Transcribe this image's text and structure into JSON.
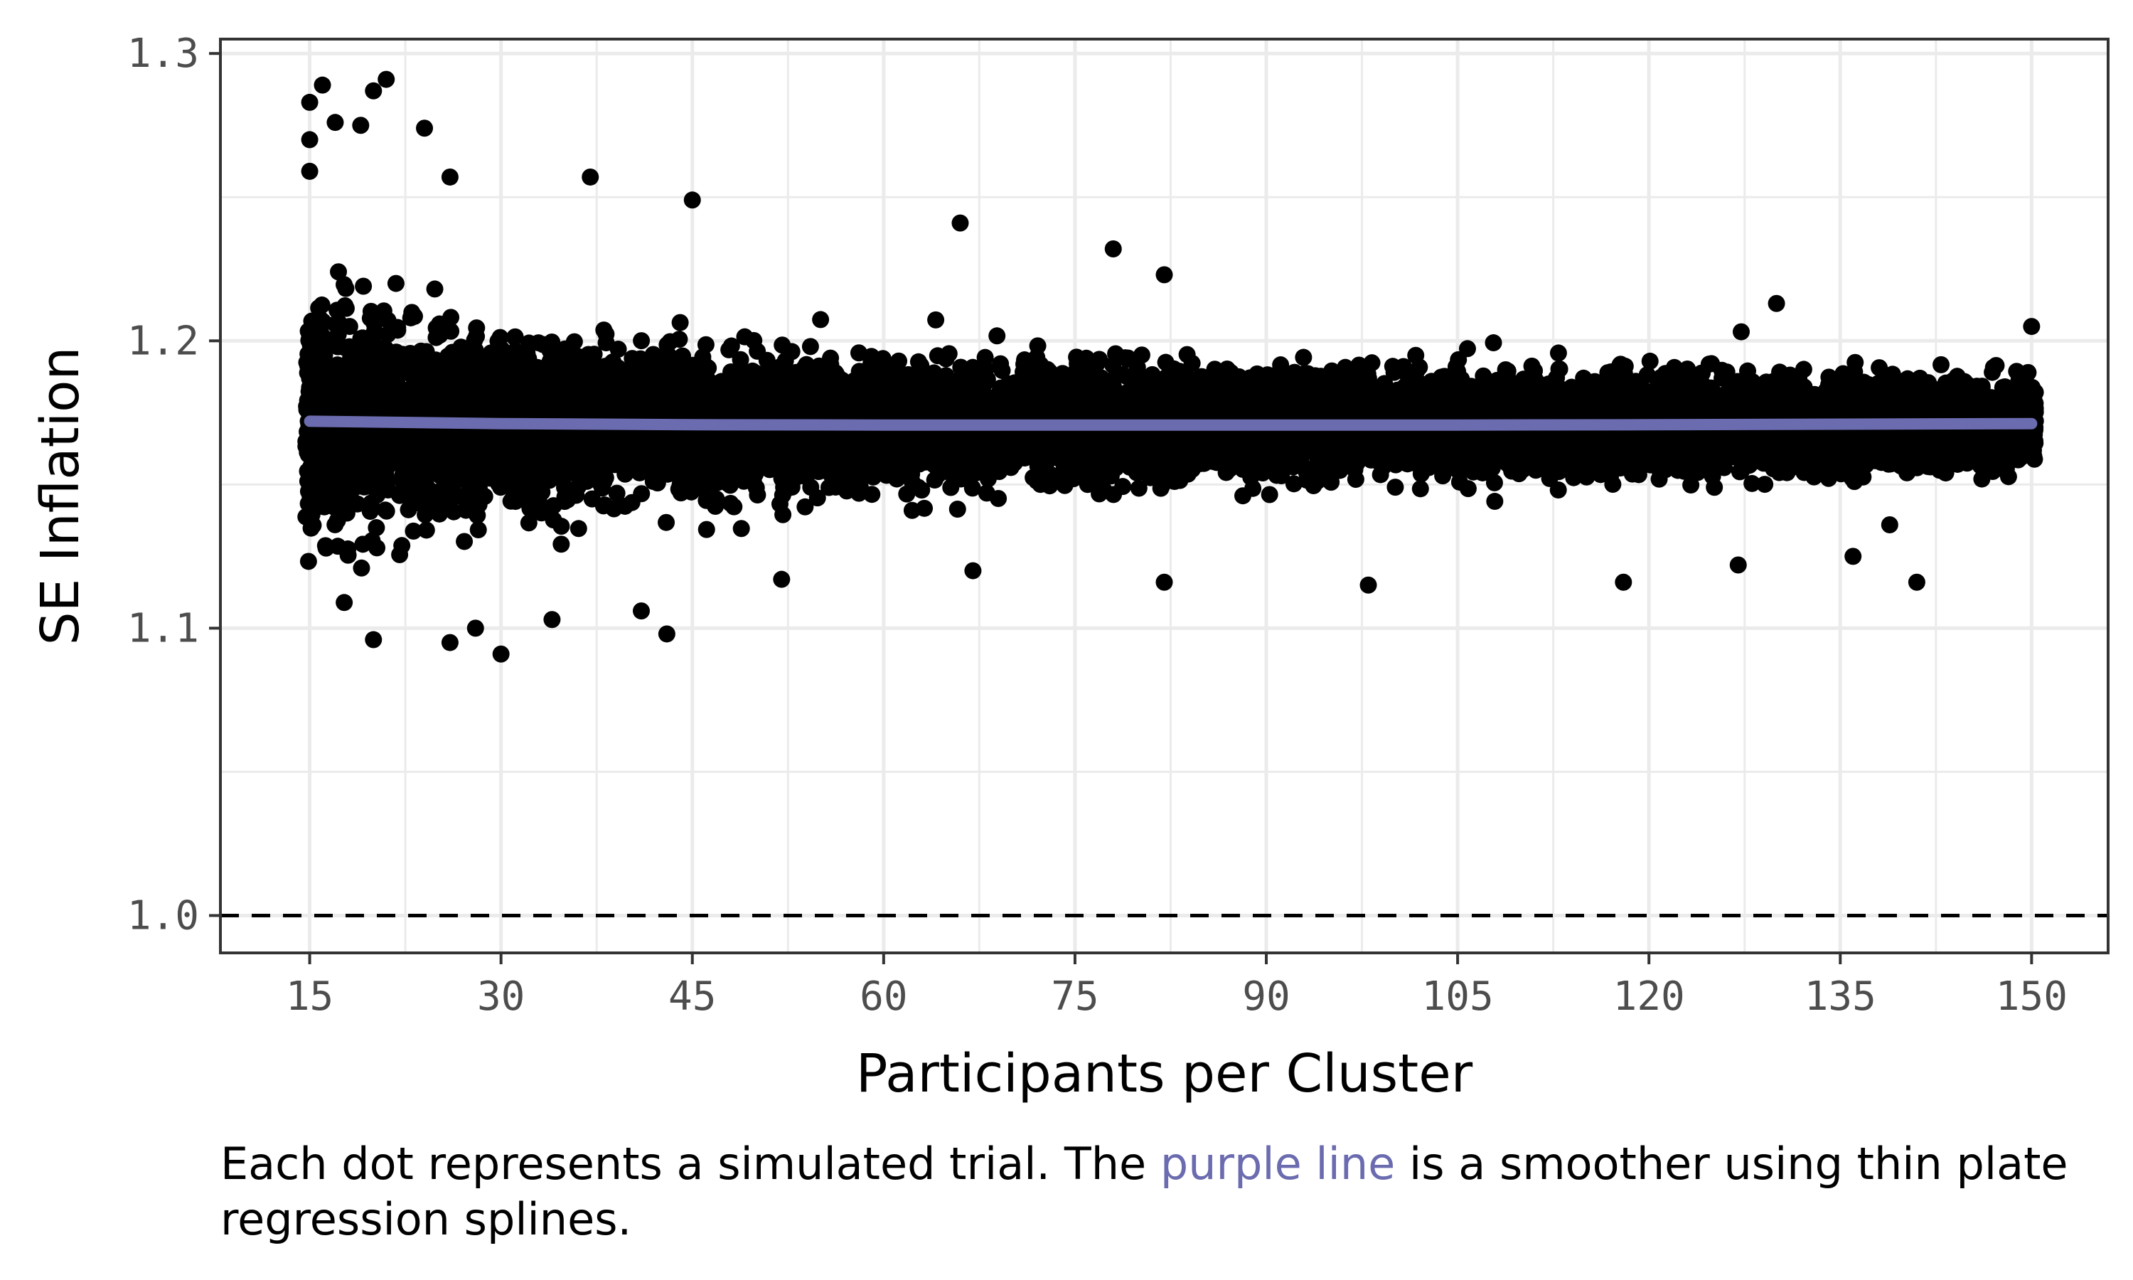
{
  "colors": {
    "points": "#000000",
    "smoother": "#6b6bb0",
    "grid": "#ebebeb",
    "panel_border": "#333333",
    "reference_line": "#000000",
    "tick_text": "#4d4d4d"
  },
  "chart_data": {
    "type": "scatter",
    "title": "",
    "xlabel": "Participants per Cluster",
    "ylabel": "SE Inflation",
    "xlim": [
      8,
      156
    ],
    "ylim": [
      0.987,
      1.305
    ],
    "x_ticks": [
      15,
      30,
      45,
      60,
      75,
      90,
      105,
      120,
      135,
      150
    ],
    "x_tick_labels": [
      "15",
      "30",
      "45",
      "60",
      "75",
      "90",
      "105",
      "120",
      "135",
      "150"
    ],
    "y_ticks": [
      1.0,
      1.1,
      1.2,
      1.3
    ],
    "y_tick_labels": [
      "1.0",
      "1.1",
      "1.2",
      "1.3"
    ],
    "grid": true,
    "reference_line": {
      "y": 1.0,
      "style": "dashed"
    },
    "series": [
      {
        "type": "scatter",
        "description_of_distribution": "dense band of simulated trials for every cluster size 15-150",
        "outliers": [
          {
            "x": 15,
            "y": 1.283
          },
          {
            "x": 16,
            "y": 1.289
          },
          {
            "x": 15,
            "y": 1.27
          },
          {
            "x": 15,
            "y": 1.259
          },
          {
            "x": 17,
            "y": 1.276
          },
          {
            "x": 19,
            "y": 1.275
          },
          {
            "x": 20,
            "y": 1.287
          },
          {
            "x": 21,
            "y": 1.291
          },
          {
            "x": 24,
            "y": 1.274
          },
          {
            "x": 26,
            "y": 1.257
          },
          {
            "x": 37,
            "y": 1.257
          },
          {
            "x": 45,
            "y": 1.249
          },
          {
            "x": 66,
            "y": 1.241
          },
          {
            "x": 78,
            "y": 1.232
          },
          {
            "x": 82,
            "y": 1.223
          },
          {
            "x": 130,
            "y": 1.213
          },
          {
            "x": 150,
            "y": 1.205
          },
          {
            "x": 20,
            "y": 1.096
          },
          {
            "x": 26,
            "y": 1.095
          },
          {
            "x": 30,
            "y": 1.091
          },
          {
            "x": 28,
            "y": 1.1
          },
          {
            "x": 43,
            "y": 1.098
          },
          {
            "x": 34,
            "y": 1.103
          },
          {
            "x": 41,
            "y": 1.106
          },
          {
            "x": 52,
            "y": 1.117
          },
          {
            "x": 67,
            "y": 1.12
          },
          {
            "x": 82,
            "y": 1.116
          },
          {
            "x": 98,
            "y": 1.115
          },
          {
            "x": 118,
            "y": 1.116
          },
          {
            "x": 127,
            "y": 1.122
          },
          {
            "x": 141,
            "y": 1.116
          },
          {
            "x": 136,
            "y": 1.125
          }
        ]
      },
      {
        "type": "line",
        "x": [
          15,
          30,
          45,
          60,
          75,
          90,
          105,
          120,
          135,
          150
        ],
        "y": [
          1.172,
          1.1712,
          1.1708,
          1.1707,
          1.1707,
          1.1707,
          1.1707,
          1.1708,
          1.171,
          1.1712
        ]
      }
    ]
  },
  "caption": {
    "before": "Each dot represents a simulated trial. The ",
    "highlight": "purple line",
    "after": " is a smoother using thin plate regression splines."
  }
}
